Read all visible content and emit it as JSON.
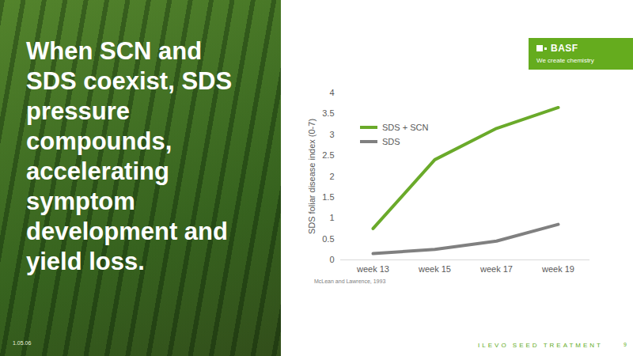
{
  "slide": {
    "headline": "When SCN and SDS coexist, SDS pressure compounds, accelerating symptom development and yield loss.",
    "logo": {
      "name": "BASF",
      "tagline": "We create chemistry"
    },
    "footer": {
      "date": "1.05.06",
      "label": "ILEVO SEED TREATMENT",
      "page": "9"
    }
  },
  "chart_data": {
    "type": "line",
    "y_label": "SDS foliar disease index (0-7)",
    "source": "McLean and Lawrence, 1993",
    "categories": [
      "week 13",
      "week 15",
      "week 17",
      "week 19"
    ],
    "series": [
      {
        "name": "SDS + SCN",
        "color": "#6aaa2a",
        "values": [
          0.75,
          2.4,
          3.15,
          3.65
        ]
      },
      {
        "name": "SDS",
        "color": "#808080",
        "values": [
          0.15,
          0.25,
          0.45,
          0.85
        ]
      }
    ],
    "ylim": [
      0,
      4
    ],
    "yticks": [
      0,
      0.5,
      1,
      1.5,
      2,
      2.5,
      3,
      3.5,
      4
    ],
    "grid": false,
    "legend": "upper left"
  }
}
